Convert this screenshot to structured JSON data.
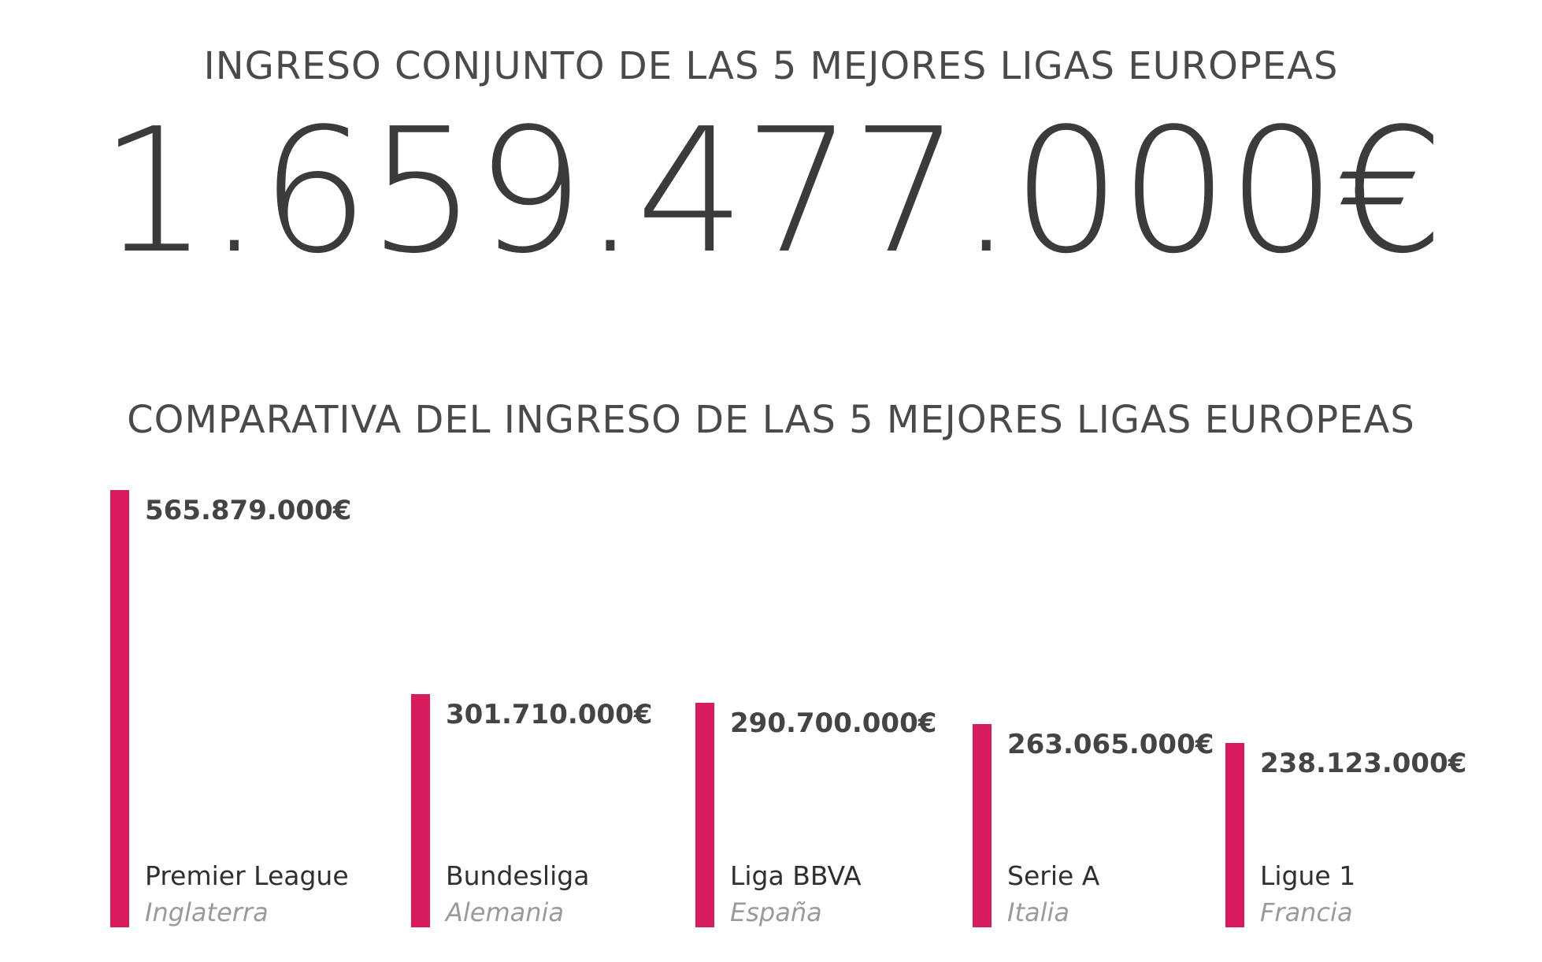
{
  "header": {
    "title": "INGRESO CONJUNTO DE LAS 5 MEJORES LIGAS EUROPEAS",
    "total": "1.659.477.000€"
  },
  "chart_data": {
    "type": "bar",
    "title": "COMPARATIVA DEL INGRESO DE LAS 5 MEJORES LIGAS EUROPEAS",
    "categories": [
      "Premier League",
      "Bundesliga",
      "Liga BBVA",
      "Serie A",
      "Ligue 1"
    ],
    "subcategories": [
      "Inglaterra",
      "Alemania",
      "España",
      "Italia",
      "Francia"
    ],
    "values": [
      565879000,
      301710000,
      290700000,
      263065000,
      238123000
    ],
    "value_labels": [
      "565.879.000€",
      "301.710.000€",
      "290.700.000€",
      "263.065.000€",
      "238.123.000€"
    ],
    "bar_color": "#d81b5c",
    "grid": false,
    "legend": "none"
  }
}
